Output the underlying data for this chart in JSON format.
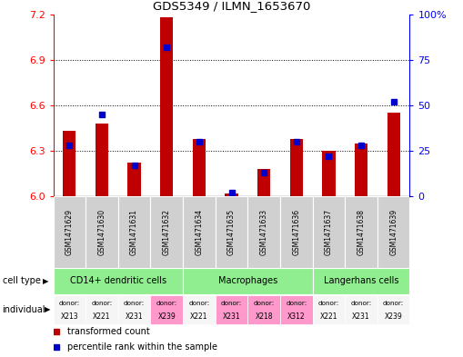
{
  "title": "GDS5349 / ILMN_1653670",
  "samples": [
    "GSM1471629",
    "GSM1471630",
    "GSM1471631",
    "GSM1471632",
    "GSM1471634",
    "GSM1471635",
    "GSM1471633",
    "GSM1471636",
    "GSM1471637",
    "GSM1471638",
    "GSM1471639"
  ],
  "red_values": [
    6.43,
    6.48,
    6.22,
    7.18,
    6.38,
    6.02,
    6.18,
    6.38,
    6.3,
    6.35,
    6.55
  ],
  "blue_values_pct": [
    28,
    45,
    17,
    82,
    30,
    2,
    13,
    30,
    22,
    28,
    52
  ],
  "y_min": 6.0,
  "y_max": 7.2,
  "y_ticks": [
    6.0,
    6.3,
    6.6,
    6.9,
    7.2
  ],
  "y2_ticks": [
    0,
    25,
    50,
    75,
    100
  ],
  "cell_groups": [
    {
      "label": "CD14+ dendritic cells",
      "start": 0,
      "end": 4
    },
    {
      "label": "Macrophages",
      "start": 4,
      "end": 8
    },
    {
      "label": "Langerhans cells",
      "start": 8,
      "end": 11
    }
  ],
  "donors": [
    "X213",
    "X221",
    "X231",
    "X239",
    "X221",
    "X231",
    "X218",
    "X312",
    "X221",
    "X231",
    "X239"
  ],
  "donor_colors": [
    "#f5f5f5",
    "#f5f5f5",
    "#f5f5f5",
    "#ff99cc",
    "#f5f5f5",
    "#ff99cc",
    "#ff99cc",
    "#ff99cc",
    "#f5f5f5",
    "#f5f5f5",
    "#f5f5f5"
  ],
  "bar_color": "#c00000",
  "blue_color": "#0000cc",
  "green_color": "#90EE90",
  "gray_color": "#d0d0d0",
  "bg_color": "#ffffff",
  "bar_width": 0.4
}
